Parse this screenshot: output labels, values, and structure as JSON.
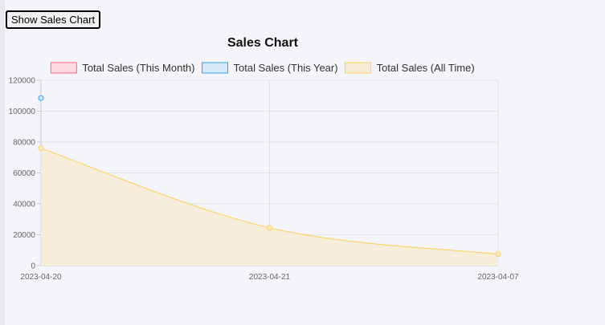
{
  "button": {
    "label": "Show Sales Chart"
  },
  "chart_data": {
    "type": "line",
    "title": "Sales Chart",
    "categories": [
      "2023-04-20",
      "2023-04-21",
      "2023-04-07"
    ],
    "ylim": [
      0,
      120000
    ],
    "yticks": [
      0,
      20000,
      40000,
      60000,
      80000,
      100000,
      120000
    ],
    "grid": true,
    "legend_position": "top",
    "series": [
      {
        "name": "Total Sales (This Month)",
        "values": [
          null,
          null,
          null
        ],
        "border_color": "#ff6384",
        "fill_color": "#ffdbe3",
        "fill": false
      },
      {
        "name": "Total Sales (This Year)",
        "values": [
          108500,
          null,
          null
        ],
        "border_color": "#36a2eb",
        "fill_color": "#d6e9f8",
        "fill": false
      },
      {
        "name": "Total Sales (All Time)",
        "values": [
          76000,
          24500,
          7500
        ],
        "border_color": "#ffce56",
        "fill_color": "#f6ecd6",
        "fill": true
      }
    ]
  }
}
